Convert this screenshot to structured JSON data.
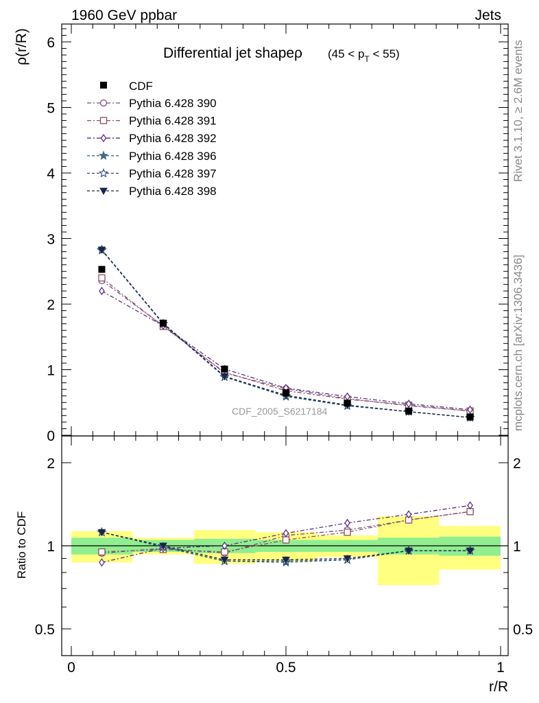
{
  "header": {
    "left": "1960 GeV ppbar",
    "right": "Jets"
  },
  "side_labels": {
    "rivet": "Rivet 3.1.10, ≥ 2.6M events",
    "mcplots": "mcplots.cern.ch [arXiv:1306.3436]"
  },
  "chart_data": {
    "type": "line",
    "title": "Differential jet shapeρ",
    "title_suffix_prefix": "(45 < p",
    "title_suffix_sub": "T",
    "title_suffix_end": " < 55)",
    "watermark": "CDF_2005_S6217184",
    "ylabel": "ρ(r/R)",
    "ratio_ylabel": "Ratio to CDF",
    "xlabel": "r/R",
    "xlim": [
      0,
      1
    ],
    "ylim": [
      0,
      6.3
    ],
    "ratio_ylim": [
      0.35,
      2.3
    ],
    "x_ticks": [
      "0",
      "0.5",
      "1"
    ],
    "y_ticks": [
      "0",
      "1",
      "2",
      "3",
      "4",
      "5",
      "6"
    ],
    "ratio_ticks": [
      "0.5",
      "1",
      "2"
    ],
    "x": [
      0.071,
      0.214,
      0.357,
      0.5,
      0.643,
      0.786,
      0.929
    ],
    "data": {
      "name": "CDF",
      "values": [
        2.53,
        1.71,
        1.01,
        0.65,
        0.49,
        0.37,
        0.28
      ],
      "stat_band": [
        [
          0,
          0.143,
          0.07
        ],
        [
          0.143,
          0.286,
          0.05
        ],
        [
          0.286,
          0.429,
          0.06
        ],
        [
          0.429,
          0.571,
          0.05
        ],
        [
          0.571,
          0.714,
          0.05
        ],
        [
          0.714,
          0.857,
          0.07
        ],
        [
          0.857,
          1.0,
          0.08
        ]
      ],
      "total_band": [
        [
          0,
          0.143,
          0.13
        ],
        [
          0.143,
          0.286,
          0.07
        ],
        [
          0.286,
          0.429,
          0.14
        ],
        [
          0.429,
          0.571,
          0.12
        ],
        [
          0.571,
          0.714,
          0.09
        ],
        [
          0.714,
          0.857,
          0.28
        ],
        [
          0.857,
          1.0,
          0.18
        ]
      ]
    },
    "series": [
      {
        "name": "Pythia 6.428 390",
        "color": "#7b4a8a",
        "marker": "circle",
        "dash": "6,3,2,3",
        "values": [
          2.36,
          1.67,
          0.95,
          0.71,
          0.56,
          0.45,
          0.37
        ],
        "ratio": [
          0.94,
          0.98,
          0.94,
          1.09,
          1.14,
          1.24,
          1.33
        ]
      },
      {
        "name": "Pythia 6.428 391",
        "color": "#8a4f5c",
        "marker": "square",
        "dash": "6,3,2,3",
        "values": [
          2.4,
          1.66,
          0.96,
          0.68,
          0.55,
          0.46,
          0.37
        ],
        "ratio": [
          0.95,
          0.97,
          0.95,
          1.05,
          1.12,
          1.24,
          1.33
        ]
      },
      {
        "name": "Pythia 6.428 392",
        "color": "#5a2d82",
        "marker": "diamond",
        "dash": "6,3,2,3",
        "values": [
          2.2,
          1.67,
          1.01,
          0.72,
          0.59,
          0.48,
          0.39
        ],
        "ratio": [
          0.87,
          0.98,
          1.0,
          1.11,
          1.21,
          1.3,
          1.4
        ]
      },
      {
        "name": "Pythia 6.428 396",
        "color": "#3f6a86",
        "marker": "star",
        "dash": "4,3",
        "values": [
          2.82,
          1.7,
          0.89,
          0.59,
          0.45,
          0.36,
          0.27
        ],
        "ratio": [
          1.12,
          0.99,
          0.88,
          0.87,
          0.89,
          0.96,
          0.96
        ]
      },
      {
        "name": "Pythia 6.428 397",
        "color": "#2c4a6e",
        "marker": "star-open",
        "dash": "4,3",
        "values": [
          2.83,
          1.7,
          0.89,
          0.6,
          0.45,
          0.36,
          0.27
        ],
        "ratio": [
          1.12,
          0.99,
          0.88,
          0.88,
          0.89,
          0.96,
          0.96
        ]
      },
      {
        "name": "Pythia 6.428 398",
        "color": "#1c2448",
        "marker": "triangle-down",
        "dash": "4,3",
        "values": [
          2.83,
          1.71,
          0.9,
          0.61,
          0.46,
          0.36,
          0.27
        ],
        "ratio": [
          1.12,
          1.0,
          0.89,
          0.89,
          0.9,
          0.96,
          0.96
        ]
      }
    ]
  }
}
